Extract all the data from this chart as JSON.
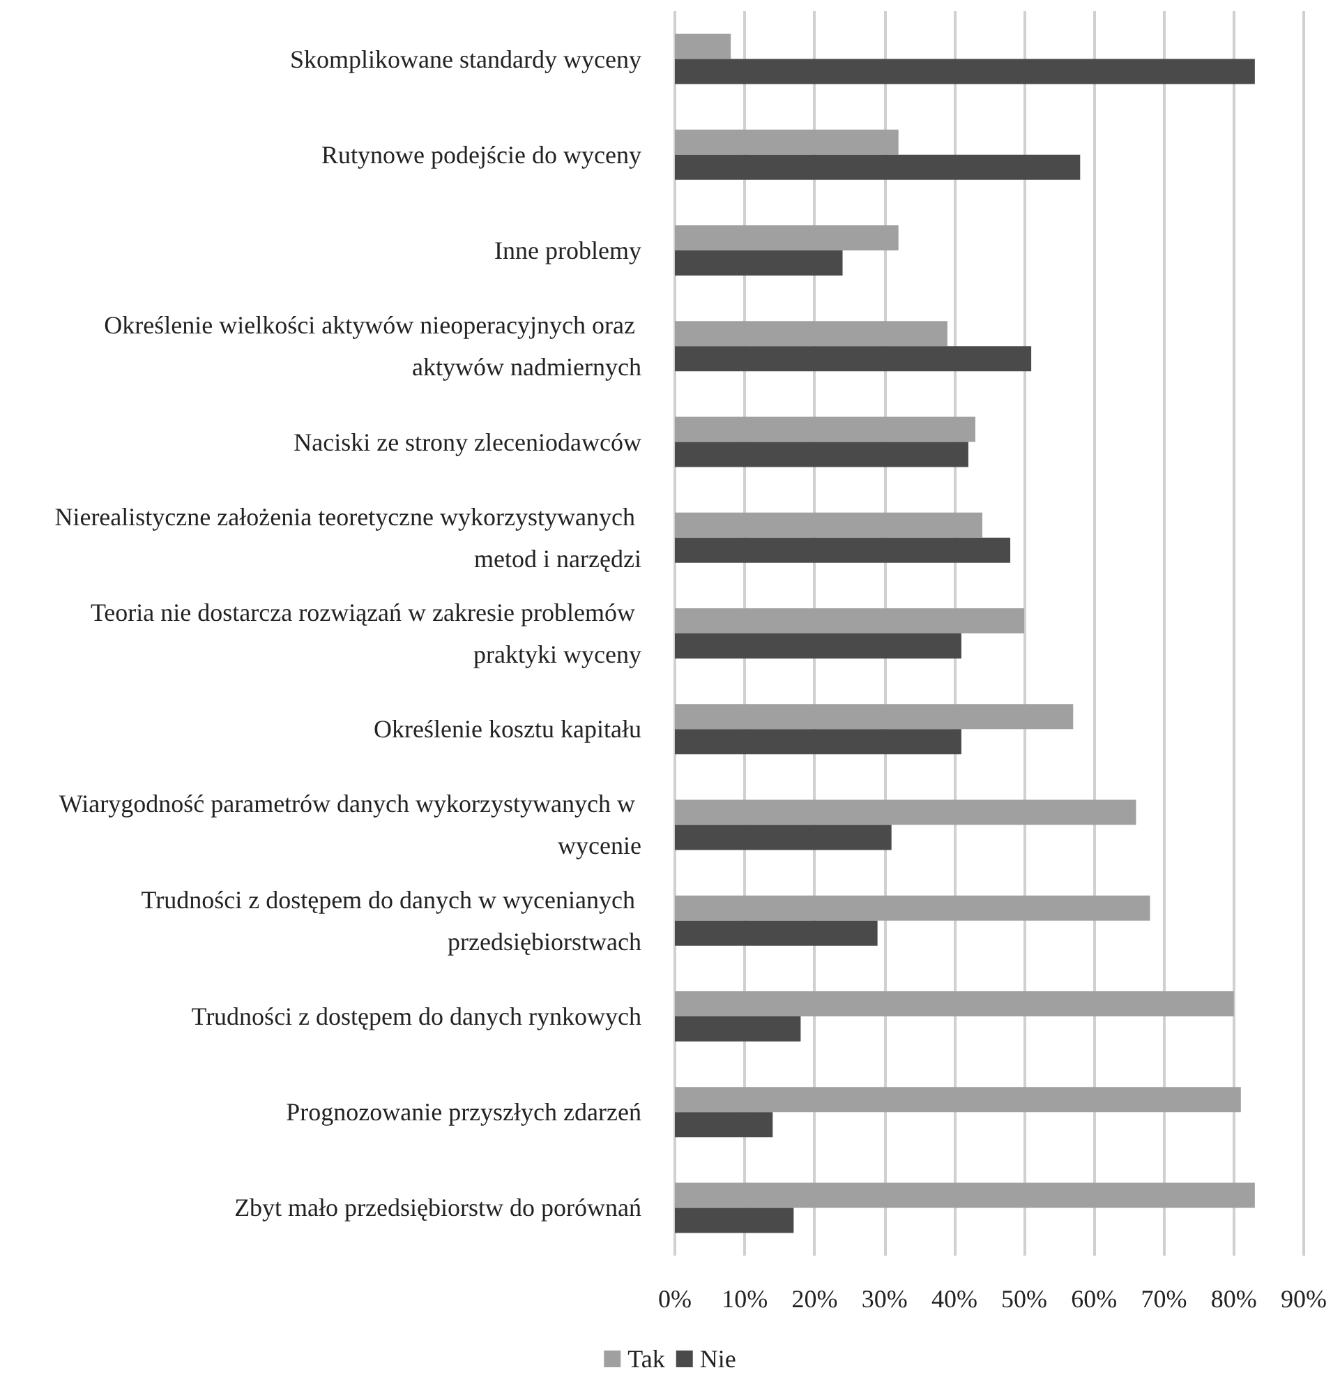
{
  "chart_data": {
    "type": "bar",
    "orientation": "horizontal",
    "categories": [
      "Skomplikowane standardy wyceny",
      "Rutynowe podejście do wyceny",
      "Inne problemy",
      "Określenie wielkości aktywów nieoperacyjnych oraz aktywów nadmiernych",
      "Naciski ze strony zleceniodawców",
      "Nierealistyczne założenia teoretyczne wykorzystywanych metod i narzędzi",
      "Teoria nie dostarcza rozwiązań w zakresie problemów praktyki wyceny",
      "Określenie kosztu kapitału",
      "Wiarygodność parametrów danych wykorzystywanych w wycenie",
      "Trudności z dostępem do danych w wycenianych przedsiębiorstwach",
      "Trudności z dostępem do danych rynkowych",
      "Prognozowanie przyszłych zdarzeń",
      "Zbyt mało przedsiębiorstw do porównań"
    ],
    "series": [
      {
        "name": "Tak",
        "color": "#a0a0a0",
        "values": [
          8,
          32,
          32,
          39,
          43,
          44,
          50,
          57,
          66,
          68,
          80,
          81,
          83
        ]
      },
      {
        "name": "Nie",
        "color": "#4a4a4a",
        "values": [
          83,
          58,
          24,
          51,
          42,
          48,
          41,
          41,
          31,
          29,
          18,
          14,
          17
        ]
      }
    ],
    "xlim": [
      0,
      90
    ],
    "xticks": [
      {
        "value": 0,
        "label": "0%"
      },
      {
        "value": 10,
        "label": "10%"
      },
      {
        "value": 20,
        "label": "20%"
      },
      {
        "value": 30,
        "label": "30%"
      },
      {
        "value": 40,
        "label": "40%"
      },
      {
        "value": 50,
        "label": "50%"
      },
      {
        "value": 60,
        "label": "60%"
      },
      {
        "value": 70,
        "label": "70%"
      },
      {
        "value": 80,
        "label": "80%"
      },
      {
        "value": 90,
        "label": "90%"
      }
    ],
    "grid": "x",
    "legend": "bottom"
  }
}
